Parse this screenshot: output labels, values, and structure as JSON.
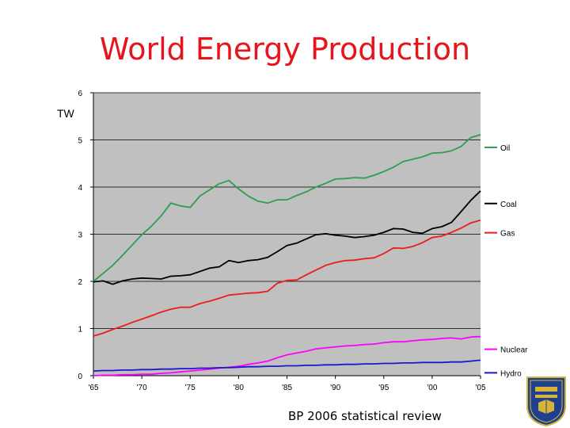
{
  "slide": {
    "title": "World Energy Production",
    "source": "BP 2006 statistical review"
  },
  "logo": {
    "name": "University of Delaware seal",
    "text": "UNIVERSITY OF DELAWARE"
  },
  "colors": {
    "plot_background": "#c0c0c0",
    "gridline": "#000000",
    "title": "#e8141b",
    "oil": "#2e9e4f",
    "coal": "#000000",
    "gas": "#ee1c1c",
    "nuclear": "#ff00ff",
    "hydro": "#1a1acc"
  },
  "chart_data": {
    "type": "line",
    "title": "World Energy Production",
    "ylabel": "TW",
    "xlabel": "",
    "xlim": [
      1965,
      2005
    ],
    "ylim": [
      0,
      6
    ],
    "grid": true,
    "legend_position": "right",
    "yticks": [
      0,
      1,
      2,
      3,
      4,
      5,
      6
    ],
    "xticks": [
      {
        "value": 1965,
        "label": "'65"
      },
      {
        "value": 1970,
        "label": "'70"
      },
      {
        "value": 1975,
        "label": "'75"
      },
      {
        "value": 1980,
        "label": "'80"
      },
      {
        "value": 1985,
        "label": "'85"
      },
      {
        "value": 1990,
        "label": "'90"
      },
      {
        "value": 1995,
        "label": "'95"
      },
      {
        "value": 2000,
        "label": "'00"
      },
      {
        "value": 2005,
        "label": "'05"
      }
    ],
    "x": [
      1965,
      1966,
      1967,
      1968,
      1969,
      1970,
      1971,
      1972,
      1973,
      1974,
      1975,
      1976,
      1977,
      1978,
      1979,
      1980,
      1981,
      1982,
      1983,
      1984,
      1985,
      1986,
      1987,
      1988,
      1989,
      1990,
      1991,
      1992,
      1993,
      1994,
      1995,
      1996,
      1997,
      1998,
      1999,
      2000,
      2001,
      2002,
      2003,
      2004,
      2005
    ],
    "series": [
      {
        "name": "Oil",
        "color_key": "oil",
        "values": [
          2.0,
          2.17,
          2.34,
          2.55,
          2.77,
          2.99,
          3.17,
          3.39,
          3.66,
          3.6,
          3.57,
          3.81,
          3.94,
          4.07,
          4.14,
          3.96,
          3.81,
          3.7,
          3.66,
          3.73,
          3.73,
          3.82,
          3.9,
          4.0,
          4.08,
          4.17,
          4.18,
          4.2,
          4.19,
          4.25,
          4.33,
          4.42,
          4.54,
          4.59,
          4.64,
          4.72,
          4.73,
          4.77,
          4.86,
          5.05,
          5.11
        ]
      },
      {
        "name": "Coal",
        "color_key": "coal",
        "values": [
          1.99,
          2.01,
          1.94,
          2.01,
          2.05,
          2.07,
          2.06,
          2.05,
          2.11,
          2.12,
          2.14,
          2.21,
          2.28,
          2.31,
          2.44,
          2.4,
          2.44,
          2.46,
          2.51,
          2.63,
          2.76,
          2.81,
          2.9,
          2.99,
          3.01,
          2.98,
          2.96,
          2.93,
          2.95,
          2.98,
          3.04,
          3.12,
          3.11,
          3.04,
          3.02,
          3.12,
          3.16,
          3.25,
          3.48,
          3.72,
          3.92
        ]
      },
      {
        "name": "Gas",
        "color_key": "gas",
        "values": [
          0.84,
          0.9,
          0.98,
          1.05,
          1.13,
          1.2,
          1.27,
          1.35,
          1.41,
          1.45,
          1.45,
          1.53,
          1.58,
          1.64,
          1.71,
          1.73,
          1.75,
          1.76,
          1.79,
          1.96,
          2.02,
          2.03,
          2.14,
          2.24,
          2.34,
          2.4,
          2.44,
          2.45,
          2.48,
          2.5,
          2.59,
          2.71,
          2.7,
          2.74,
          2.82,
          2.93,
          2.96,
          3.04,
          3.13,
          3.24,
          3.3
        ]
      },
      {
        "name": "Nuclear",
        "color_key": "nuclear",
        "values": [
          0.0,
          0.01,
          0.01,
          0.02,
          0.02,
          0.03,
          0.03,
          0.05,
          0.06,
          0.08,
          0.1,
          0.12,
          0.14,
          0.16,
          0.18,
          0.2,
          0.24,
          0.27,
          0.31,
          0.38,
          0.44,
          0.48,
          0.52,
          0.57,
          0.59,
          0.61,
          0.63,
          0.64,
          0.66,
          0.67,
          0.7,
          0.72,
          0.72,
          0.74,
          0.76,
          0.77,
          0.79,
          0.8,
          0.78,
          0.82,
          0.83
        ]
      },
      {
        "name": "Hydro",
        "color_key": "hydro",
        "values": [
          0.1,
          0.11,
          0.11,
          0.12,
          0.12,
          0.13,
          0.13,
          0.14,
          0.14,
          0.15,
          0.15,
          0.16,
          0.16,
          0.17,
          0.17,
          0.18,
          0.19,
          0.19,
          0.2,
          0.2,
          0.21,
          0.21,
          0.22,
          0.22,
          0.23,
          0.23,
          0.24,
          0.24,
          0.25,
          0.25,
          0.26,
          0.26,
          0.27,
          0.27,
          0.28,
          0.28,
          0.28,
          0.29,
          0.29,
          0.31,
          0.33
        ]
      }
    ]
  }
}
